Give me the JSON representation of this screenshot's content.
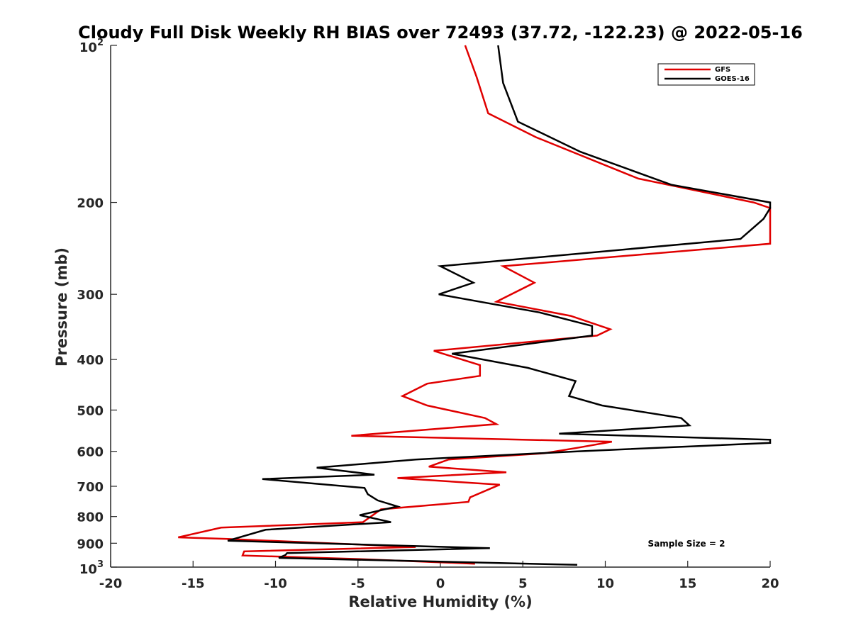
{
  "chart_data": {
    "type": "line",
    "title": "Cloudy Full Disk Weekly RH BIAS over 72493 (37.72, -122.23) @ 2022-05-16",
    "xlabel": "Relative Humidity (%)",
    "ylabel": "Pressure (mb)",
    "xlim": [
      -20,
      20
    ],
    "ylim": [
      100,
      1000
    ],
    "y_scale": "log",
    "y_reversed": true,
    "x_ticks": [
      -20,
      -15,
      -10,
      -5,
      0,
      5,
      10,
      15,
      20
    ],
    "x_tick_labels": [
      "-20",
      "-15",
      "-10",
      "-5",
      "0",
      "5",
      "10",
      "15",
      "20"
    ],
    "y_ticks": [
      200,
      300,
      400,
      500,
      600,
      700,
      800,
      900
    ],
    "y_tick_labels": [
      "200",
      "300",
      "400",
      "500",
      "600",
      "700",
      "800",
      "900"
    ],
    "y_top_label": {
      "base": "10",
      "exp": "2"
    },
    "y_bottom_label": {
      "base": "10",
      "exp": "3"
    },
    "legend_position": "top-right",
    "grid": false,
    "annotation": "Sample Size = 2",
    "series": [
      {
        "name": "GFS",
        "color": "#e00000",
        "points": [
          [
            1.5,
            100
          ],
          [
            2.2,
            115
          ],
          [
            2.9,
            135
          ],
          [
            5.8,
            150
          ],
          [
            12,
            180
          ],
          [
            19,
            200
          ],
          [
            20,
            205
          ],
          [
            20,
            240
          ],
          [
            3.8,
            265
          ],
          [
            5.7,
            285
          ],
          [
            3.4,
            310
          ],
          [
            7.9,
            330
          ],
          [
            10.3,
            350
          ],
          [
            9.5,
            360
          ],
          [
            -0.4,
            385
          ],
          [
            2.4,
            410
          ],
          [
            2.4,
            430
          ],
          [
            -0.8,
            445
          ],
          [
            -2.3,
            470
          ],
          [
            -0.8,
            490
          ],
          [
            2.7,
            518
          ],
          [
            3.4,
            532
          ],
          [
            -5.4,
            560
          ],
          [
            10.4,
            575
          ],
          [
            8.4,
            590
          ],
          [
            6.3,
            605
          ],
          [
            0.5,
            622
          ],
          [
            -0.7,
            642
          ],
          [
            4.0,
            658
          ],
          [
            -2.6,
            675
          ],
          [
            3.6,
            695
          ],
          [
            1.8,
            735
          ],
          [
            1.7,
            750
          ],
          [
            -3.6,
            775
          ],
          [
            -4.7,
            820
          ],
          [
            -13.3,
            840
          ],
          [
            -15.9,
            877
          ],
          [
            -12.9,
            883
          ],
          [
            -1.5,
            915
          ],
          [
            -11.9,
            933
          ],
          [
            -12.0,
            950
          ],
          [
            -5.0,
            965
          ],
          [
            2.1,
            985
          ]
        ]
      },
      {
        "name": "GOES-16",
        "color": "#000000",
        "points": [
          [
            3.5,
            100
          ],
          [
            3.8,
            118
          ],
          [
            4.7,
            140
          ],
          [
            8.5,
            160
          ],
          [
            14,
            185
          ],
          [
            20,
            200
          ],
          [
            20,
            205
          ],
          [
            19.6,
            215
          ],
          [
            18.2,
            235
          ],
          [
            0,
            265
          ],
          [
            2.0,
            285
          ],
          [
            -0.1,
            300
          ],
          [
            6,
            325
          ],
          [
            9.2,
            345
          ],
          [
            9.2,
            360
          ],
          [
            0.7,
            390
          ],
          [
            5.3,
            415
          ],
          [
            8.2,
            440
          ],
          [
            7.8,
            470
          ],
          [
            9.8,
            490
          ],
          [
            14.6,
            518
          ],
          [
            15.1,
            535
          ],
          [
            7.2,
            555
          ],
          [
            20,
            570
          ],
          [
            20,
            578
          ],
          [
            8.3,
            600
          ],
          [
            -1.5,
            622
          ],
          [
            -7.5,
            645
          ],
          [
            -4.0,
            665
          ],
          [
            -10.8,
            678
          ],
          [
            -4.6,
            705
          ],
          [
            -4.4,
            725
          ],
          [
            -3.8,
            745
          ],
          [
            -2.6,
            765
          ],
          [
            -4.9,
            795
          ],
          [
            -3.0,
            820
          ],
          [
            -10.6,
            848
          ],
          [
            -12.9,
            890
          ],
          [
            3.0,
            920
          ],
          [
            -9.3,
            940
          ],
          [
            -9.4,
            948
          ],
          [
            -9.8,
            960
          ],
          [
            8.3,
            990
          ]
        ]
      }
    ]
  }
}
